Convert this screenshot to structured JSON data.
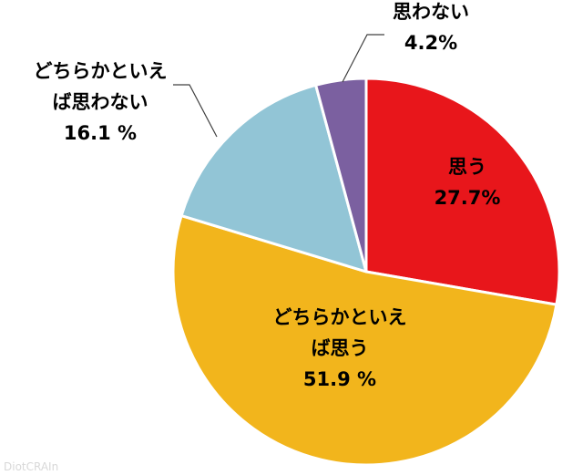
{
  "chart_data": {
    "type": "pie",
    "title": "",
    "slices": [
      {
        "label_lines": [
          "思う"
        ],
        "value_text": "27.7%",
        "value": 27.7,
        "color": "#e8161b"
      },
      {
        "label_lines": [
          "どちらかといえ",
          "ば思う"
        ],
        "value_text": "51.9 %",
        "value": 51.9,
        "color": "#f2b51c"
      },
      {
        "label_lines": [
          "どちらかといえ",
          "ば思わない"
        ],
        "value_text": "16.1 %",
        "value": 16.1,
        "color": "#92c5d6"
      },
      {
        "label_lines": [
          "思わない"
        ],
        "value_text": "4.2%",
        "value": 4.2,
        "color": "#7b60a0"
      }
    ],
    "start_angle": "12 o'clock",
    "direction": "clockwise",
    "legend": "none"
  },
  "watermark": "DiotCRAIn"
}
